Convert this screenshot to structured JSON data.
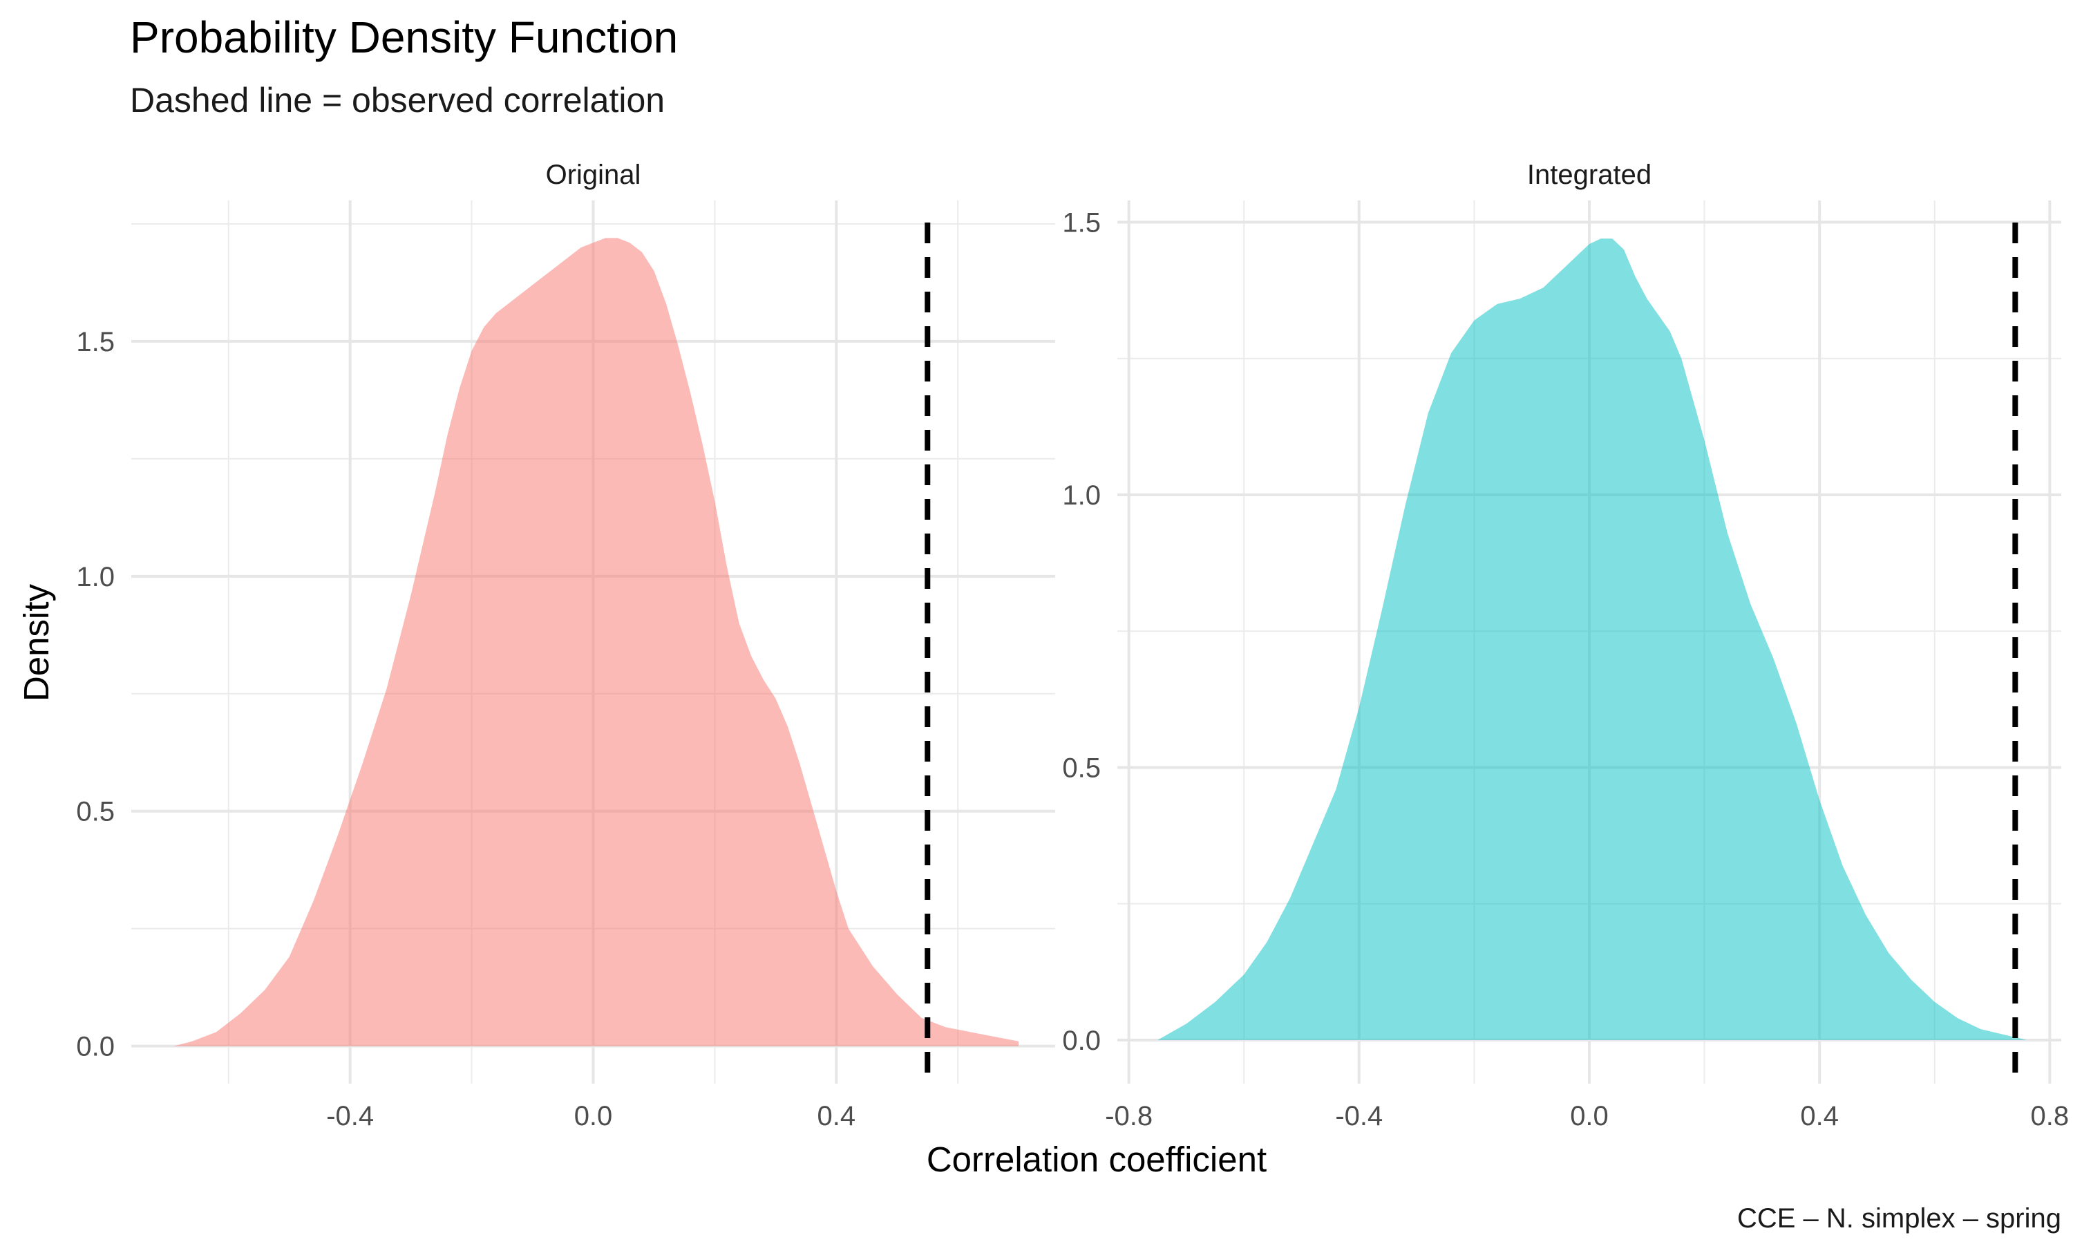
{
  "title": "Probability Density Function",
  "subtitle": "Dashed line = observed correlation",
  "xlabel": "Correlation coefficient",
  "ylabel": "Density",
  "caption": "CCE – N. simplex – spring",
  "chart_data": [
    {
      "type": "area",
      "panel": "Original",
      "fill_color": "#F8766D",
      "fill_opacity": 0.5,
      "observed_line": 0.55,
      "xlim": [
        -0.76,
        0.76
      ],
      "ylim": [
        -0.08,
        1.8
      ],
      "x_ticks": [
        -0.4,
        0.0,
        0.4
      ],
      "x_tick_labels": [
        "-0.4",
        "0.0",
        "0.4"
      ],
      "y_ticks": [
        0.0,
        0.5,
        1.0,
        1.5
      ],
      "y_tick_labels": [
        "0.0",
        "0.5",
        "1.0",
        "1.5"
      ],
      "x": [
        -0.69,
        -0.66,
        -0.62,
        -0.58,
        -0.54,
        -0.5,
        -0.46,
        -0.42,
        -0.38,
        -0.34,
        -0.3,
        -0.26,
        -0.24,
        -0.22,
        -0.2,
        -0.18,
        -0.16,
        -0.14,
        -0.12,
        -0.1,
        -0.08,
        -0.06,
        -0.04,
        -0.02,
        0.0,
        0.02,
        0.04,
        0.06,
        0.08,
        0.1,
        0.12,
        0.14,
        0.16,
        0.18,
        0.2,
        0.22,
        0.24,
        0.26,
        0.28,
        0.3,
        0.32,
        0.34,
        0.36,
        0.38,
        0.4,
        0.42,
        0.46,
        0.5,
        0.54,
        0.58,
        0.62,
        0.66,
        0.7
      ],
      "y": [
        0.0,
        0.01,
        0.03,
        0.07,
        0.12,
        0.19,
        0.31,
        0.45,
        0.6,
        0.76,
        0.96,
        1.18,
        1.3,
        1.4,
        1.48,
        1.53,
        1.56,
        1.58,
        1.6,
        1.62,
        1.64,
        1.66,
        1.68,
        1.7,
        1.71,
        1.72,
        1.72,
        1.71,
        1.69,
        1.65,
        1.58,
        1.49,
        1.39,
        1.28,
        1.16,
        1.02,
        0.9,
        0.83,
        0.78,
        0.74,
        0.68,
        0.6,
        0.51,
        0.42,
        0.33,
        0.25,
        0.17,
        0.11,
        0.06,
        0.04,
        0.03,
        0.02,
        0.01
      ]
    },
    {
      "type": "area",
      "panel": "Integrated",
      "fill_color": "#00BFC4",
      "fill_opacity": 0.5,
      "observed_line": 0.74,
      "xlim": [
        -0.82,
        0.82
      ],
      "ylim": [
        -0.08,
        1.54
      ],
      "x_ticks": [
        -0.8,
        -0.4,
        0.0,
        0.4,
        0.8
      ],
      "x_tick_labels": [
        "-0.8",
        "-0.4",
        "0.0",
        "0.4",
        "0.8"
      ],
      "y_ticks": [
        0.0,
        0.5,
        1.0,
        1.5
      ],
      "y_tick_labels": [
        "0.0",
        "0.5",
        "1.0",
        "1.5"
      ],
      "x": [
        -0.75,
        -0.7,
        -0.65,
        -0.6,
        -0.56,
        -0.52,
        -0.48,
        -0.44,
        -0.4,
        -0.36,
        -0.32,
        -0.28,
        -0.24,
        -0.2,
        -0.16,
        -0.12,
        -0.1,
        -0.08,
        -0.06,
        -0.04,
        -0.02,
        0.0,
        0.02,
        0.04,
        0.06,
        0.08,
        0.1,
        0.12,
        0.14,
        0.16,
        0.2,
        0.24,
        0.28,
        0.32,
        0.36,
        0.4,
        0.44,
        0.48,
        0.52,
        0.56,
        0.6,
        0.64,
        0.68,
        0.72,
        0.76,
        0.78
      ],
      "y": [
        0.0,
        0.03,
        0.07,
        0.12,
        0.18,
        0.26,
        0.36,
        0.46,
        0.61,
        0.79,
        0.98,
        1.15,
        1.26,
        1.32,
        1.35,
        1.36,
        1.37,
        1.38,
        1.4,
        1.42,
        1.44,
        1.46,
        1.47,
        1.47,
        1.45,
        1.4,
        1.36,
        1.33,
        1.3,
        1.25,
        1.1,
        0.93,
        0.8,
        0.7,
        0.58,
        0.44,
        0.32,
        0.23,
        0.16,
        0.11,
        0.07,
        0.04,
        0.02,
        0.01,
        0.0,
        0.0
      ]
    }
  ]
}
